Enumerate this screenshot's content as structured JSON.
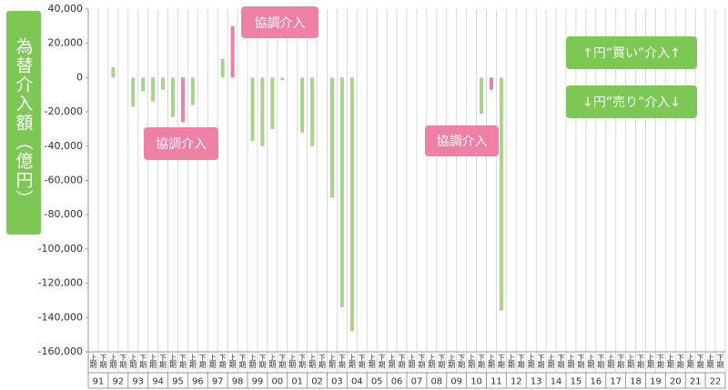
{
  "chart_data": {
    "type": "bar",
    "y_label": "為替介入額（億円）",
    "categories": [
      "上期",
      "下期",
      "上期",
      "下期",
      "上期",
      "下期",
      "上期",
      "下期",
      "上期",
      "下期",
      "上期",
      "下期",
      "上期",
      "下期",
      "上期",
      "下期",
      "上期",
      "下期",
      "上期",
      "下期",
      "上期",
      "下期",
      "上期",
      "下期",
      "上期",
      "下期",
      "上期",
      "下期",
      "上期",
      "下期",
      "上期",
      "下期",
      "上期",
      "下期",
      "上期",
      "下期",
      "上期",
      "下期",
      "上期",
      "下期",
      "上期",
      "下期",
      "上期",
      "下期",
      "上期",
      "下期",
      "上期",
      "下期",
      "上期",
      "下期",
      "上期",
      "下期",
      "上期",
      "下期",
      "上期",
      "下期",
      "上期",
      "下期",
      "上期",
      "下期",
      "上期",
      "下期",
      "上期",
      "下期"
    ],
    "years": [
      "91",
      "92",
      "93",
      "94",
      "95",
      "96",
      "97",
      "98",
      "99",
      "00",
      "01",
      "02",
      "03",
      "04",
      "05",
      "06",
      "07",
      "08",
      "09",
      "10",
      "11",
      "12",
      "13",
      "14",
      "15",
      "16",
      "17",
      "18",
      "19",
      "20",
      "21",
      "22"
    ],
    "series": [
      {
        "color": "#a8d48a",
        "values": [
          null,
          null,
          6000,
          null,
          -17000,
          -8000,
          -14000,
          -7000,
          -23000,
          null,
          -16000,
          null,
          null,
          11000,
          null,
          null,
          -37000,
          -40000,
          -30000,
          -1500,
          null,
          -32000,
          -40000,
          null,
          -70000,
          -134000,
          -148000,
          null,
          null,
          null,
          null,
          null,
          null,
          null,
          null,
          null,
          null,
          null,
          null,
          -21000,
          null,
          -136000,
          null,
          null,
          null,
          null,
          null,
          null,
          null,
          null,
          null,
          null,
          null,
          null,
          null,
          null,
          null,
          null,
          null,
          null,
          null,
          null,
          null,
          null
        ]
      },
      {
        "color": "#ef7fa0",
        "values": [
          null,
          null,
          null,
          null,
          null,
          null,
          null,
          null,
          null,
          -26000,
          null,
          null,
          null,
          null,
          30000,
          null,
          null,
          null,
          null,
          null,
          null,
          null,
          null,
          null,
          null,
          null,
          null,
          null,
          null,
          null,
          null,
          null,
          null,
          null,
          null,
          null,
          null,
          null,
          null,
          null,
          -7000,
          null,
          null,
          null,
          null,
          null,
          null,
          null,
          null,
          null,
          null,
          null,
          null,
          null,
          null,
          null,
          null,
          null,
          null,
          null,
          null,
          null,
          null,
          null
        ]
      }
    ],
    "ylim": [
      -160000,
      40000
    ],
    "yticks": [
      {
        "value": 40000,
        "label": "40,000"
      },
      {
        "value": 20000,
        "label": "20,000"
      },
      0,
      {
        "value": -20000,
        "label": "-20,000"
      },
      {
        "value": -40000,
        "label": "-40,000"
      },
      {
        "value": -60000,
        "label": "-60,000"
      },
      {
        "value": -80000,
        "label": "-80,000"
      },
      {
        "value": -100000,
        "label": "-100,000"
      },
      {
        "value": -120000,
        "label": "-120,000"
      },
      {
        "value": -140000,
        "label": "-140,000"
      },
      {
        "value": -160000,
        "label": "-160,000"
      }
    ],
    "annotations": [
      "協調介入",
      "協調介入",
      "協調介入",
      "↑円”買い”介入↑",
      "↓円”売り”介入↓"
    ]
  }
}
